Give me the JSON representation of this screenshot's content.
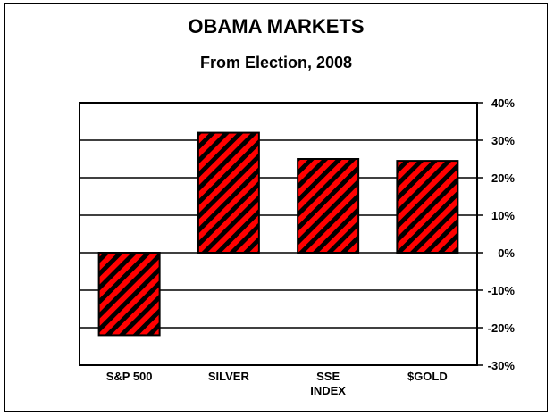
{
  "chart_data": {
    "type": "bar",
    "title": "OBAMA MARKETS",
    "subtitle": "From Election, 2008",
    "categories": [
      [
        "S&P 500"
      ],
      [
        "SILVER"
      ],
      [
        "SSE",
        "INDEX"
      ],
      [
        "$GOLD"
      ]
    ],
    "values": [
      -22,
      32,
      25,
      24.5
    ],
    "yticks": [
      "40%",
      "30%",
      "20%",
      "10%",
      "0%",
      "-10%",
      "-20%",
      "-30%"
    ],
    "ylim": [
      -30,
      40
    ],
    "ytick_step": 10,
    "y_axis_position": "right",
    "grid": true,
    "bar_color": "#ff0000",
    "hatch_color": "#000000"
  }
}
